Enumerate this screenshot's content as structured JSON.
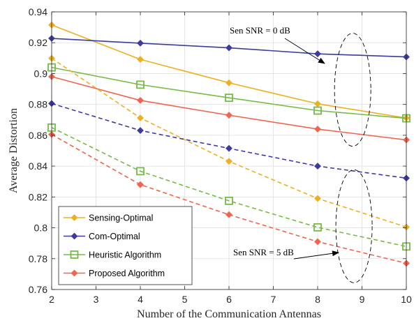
{
  "chart_data": {
    "type": "line",
    "title": "",
    "xlabel": "Number of the Communication Antennas",
    "ylabel": "Average Distortion",
    "xlim": [
      2,
      10
    ],
    "ylim": [
      0.76,
      0.94
    ],
    "x_ticks": [
      "2",
      "3",
      "4",
      "5",
      "6",
      "7",
      "8",
      "9",
      "10"
    ],
    "y_ticks": [
      "0.76",
      "0.78",
      "0.8",
      "0.82",
      "0.84",
      "0.86",
      "0.88",
      "0.9",
      "0.92",
      "0.94"
    ],
    "grid": true,
    "legend_position": "bottom-left",
    "legend": [
      {
        "label": "Sensing-Optimal",
        "color": "#EDB120",
        "marker": "diamond"
      },
      {
        "label": "Com-Optimal",
        "color": "#3C3C9E",
        "marker": "diamond"
      },
      {
        "label": "Heuristic Algorithm",
        "color": "#77BB46",
        "marker": "square-open"
      },
      {
        "label": "Proposed Algorithm",
        "color": "#F0654F",
        "marker": "diamond"
      }
    ],
    "series": [
      {
        "name": "Sensing-Optimal",
        "group": "Sen SNR = 0 dB",
        "style": "solid",
        "color": "#EDB120",
        "marker": "diamond",
        "x": [
          2,
          4,
          6,
          8,
          10
        ],
        "y": [
          0.9315,
          0.9092,
          0.894,
          0.8804,
          0.8712
        ]
      },
      {
        "name": "Com-Optimal",
        "group": "Sen SNR = 0 dB",
        "style": "solid",
        "color": "#3C3C9E",
        "marker": "diamond",
        "x": [
          2,
          4,
          6,
          8,
          10
        ],
        "y": [
          0.9228,
          0.9197,
          0.9167,
          0.9128,
          0.9108
        ]
      },
      {
        "name": "Heuristic Algorithm",
        "group": "Sen SNR = 0 dB",
        "style": "solid",
        "color": "#77BB46",
        "marker": "square-open",
        "x": [
          2,
          4,
          6,
          8,
          10
        ],
        "y": [
          0.904,
          0.8928,
          0.8843,
          0.876,
          0.871
        ]
      },
      {
        "name": "Proposed Algorithm",
        "group": "Sen SNR = 0 dB",
        "style": "solid",
        "color": "#F0654F",
        "marker": "diamond",
        "x": [
          2,
          4,
          6,
          8,
          10
        ],
        "y": [
          0.898,
          0.8826,
          0.873,
          0.864,
          0.857
        ]
      },
      {
        "name": "Sensing-Optimal",
        "group": "Sen SNR = 5 dB",
        "style": "dashed",
        "color": "#EDB120",
        "marker": "diamond",
        "x": [
          2,
          4,
          6,
          8,
          10
        ],
        "y": [
          0.9099,
          0.8712,
          0.8431,
          0.819,
          0.8005
        ]
      },
      {
        "name": "Com-Optimal",
        "group": "Sen SNR = 5 dB",
        "style": "dashed",
        "color": "#3C3C9E",
        "marker": "diamond",
        "x": [
          2,
          4,
          6,
          8,
          10
        ],
        "y": [
          0.8806,
          0.8631,
          0.8515,
          0.84,
          0.8322
        ]
      },
      {
        "name": "Heuristic Algorithm",
        "group": "Sen SNR = 5 dB",
        "style": "dashed",
        "color": "#77BB46",
        "marker": "square-open",
        "x": [
          2,
          4,
          6,
          8,
          10
        ],
        "y": [
          0.865,
          0.8367,
          0.8175,
          0.8003,
          0.7879
        ]
      },
      {
        "name": "Proposed Algorithm",
        "group": "Sen SNR = 5 dB",
        "style": "dashed",
        "color": "#F0654F",
        "marker": "diamond",
        "x": [
          2,
          4,
          6,
          8,
          10
        ],
        "y": [
          0.8605,
          0.828,
          0.8085,
          0.791,
          0.777
        ]
      }
    ],
    "annotations": [
      {
        "text": "Sen SNR = 0 dB",
        "ellipse_center": [
          8.79,
          0.8895
        ]
      },
      {
        "text": "Sen SNR = 5 dB",
        "ellipse_center": [
          8.82,
          0.801
        ]
      }
    ]
  }
}
